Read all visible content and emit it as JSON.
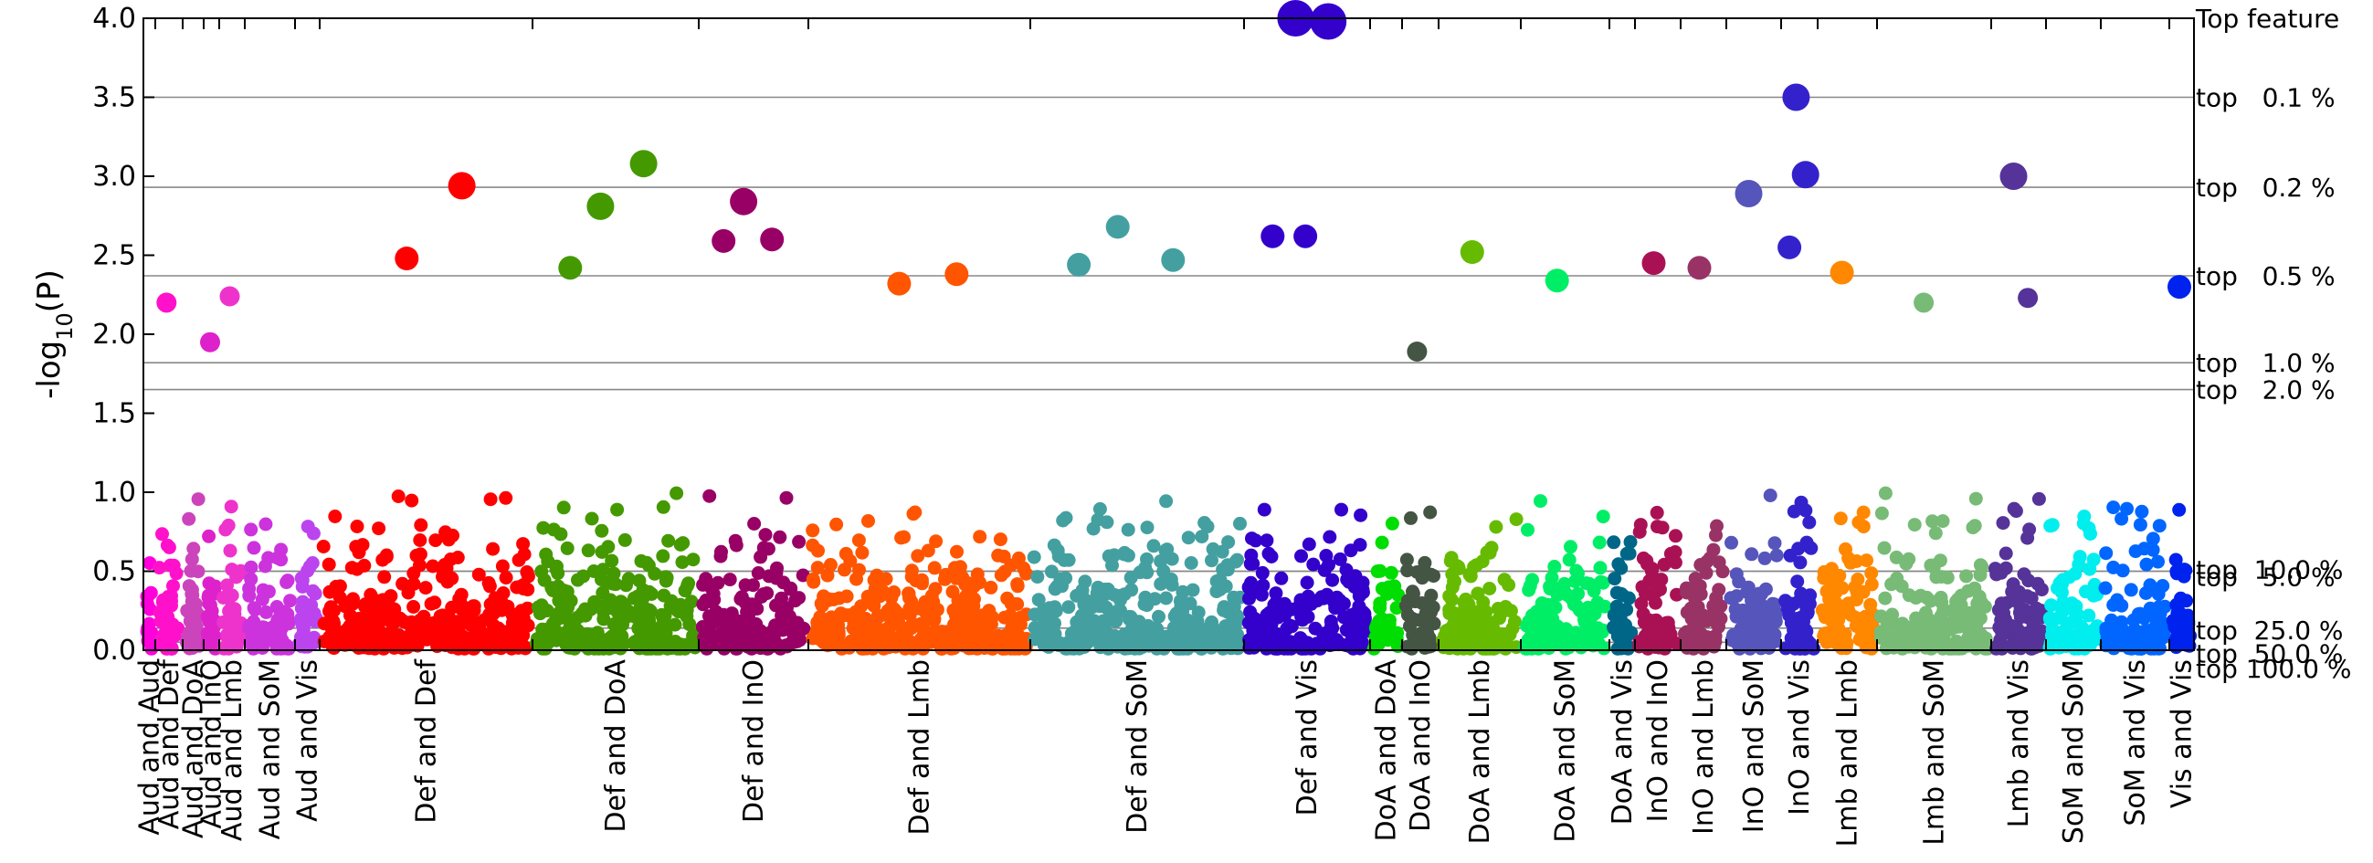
{
  "chart_data": {
    "type": "scatter",
    "title": "",
    "xlabel": "",
    "ylabel": "-log10(P)",
    "ylabel_parts": {
      "main": "-log",
      "sub": "10",
      "tail": "(P)"
    },
    "ylim": [
      0,
      4.0
    ],
    "yticks": [
      "0.0",
      "0.5",
      "1.0",
      "1.5",
      "2.0",
      "2.5",
      "3.0",
      "3.5",
      "4.0"
    ],
    "grid": "horizontal percentile thresholds",
    "legend": "none",
    "categories": [
      {
        "label": "Aud and Aud",
        "color": "#ff00dd"
      },
      {
        "label": "Aud and Def",
        "color": "#ff11cc"
      },
      {
        "label": "Aud and DoA",
        "color": "#cc44bb"
      },
      {
        "label": "Aud and InO",
        "color": "#dd22cc"
      },
      {
        "label": "Aud and Lmb",
        "color": "#ee33cc"
      },
      {
        "label": "Aud and SoM",
        "color": "#cc33dd"
      },
      {
        "label": "Aud and Vis",
        "color": "#bb44ee"
      },
      {
        "label": "Def and Def",
        "color": "#ff0000"
      },
      {
        "label": "Def and DoA",
        "color": "#449900"
      },
      {
        "label": "Def and InO",
        "color": "#990066"
      },
      {
        "label": "Def and Lmb",
        "color": "#ff5500"
      },
      {
        "label": "Def and SoM",
        "color": "#44a0a0"
      },
      {
        "label": "Def and Vis",
        "color": "#3300cc"
      },
      {
        "label": "DoA and DoA",
        "color": "#00dd00"
      },
      {
        "label": "DoA and InO",
        "color": "#445544"
      },
      {
        "label": "DoA and Lmb",
        "color": "#66bb00"
      },
      {
        "label": "DoA and SoM",
        "color": "#00ee66"
      },
      {
        "label": "DoA and Vis",
        "color": "#006688"
      },
      {
        "label": "InO and InO",
        "color": "#aa1155"
      },
      {
        "label": "InO and Lmb",
        "color": "#993366"
      },
      {
        "label": "InO and SoM",
        "color": "#5555bb"
      },
      {
        "label": "InO and Vis",
        "color": "#3322cc"
      },
      {
        "label": "Lmb and Lmb",
        "color": "#ff8800"
      },
      {
        "label": "Lmb and SoM",
        "color": "#77bb77"
      },
      {
        "label": "Lmb and Vis",
        "color": "#553399"
      },
      {
        "label": "SoM and SoM",
        "color": "#00eeee"
      },
      {
        "label": "SoM and Vis",
        "color": "#0066ff"
      },
      {
        "label": "Vis and Vis",
        "color": "#0022ee"
      }
    ],
    "thresholds": [
      {
        "label": "Top feature",
        "y": 4.0
      },
      {
        "label": "top   0.1 %",
        "y": 3.5
      },
      {
        "label": "top   0.2 %",
        "y": 2.93
      },
      {
        "label": "top   0.5 %",
        "y": 2.37
      },
      {
        "label": "top   1.0 %",
        "y": 1.82
      },
      {
        "label": "top   2.0 %",
        "y": 1.65
      },
      {
        "label": "top   5.0 %",
        "y": 0.5
      },
      {
        "label": "top  10.0 %",
        "y": 0.5
      },
      {
        "label": "top  25.0 %",
        "y": 0.14
      },
      {
        "label": "top  50.0 %",
        "y": 0.05
      },
      {
        "label": "top 100.0 %",
        "y": 0.0
      }
    ],
    "notable_points": [
      {
        "group": "Aud and Def",
        "y": 2.2
      },
      {
        "group": "Aud and InO",
        "y": 1.95
      },
      {
        "group": "Aud and Lmb",
        "y": 2.24
      },
      {
        "group": "Def and Def",
        "y": 2.48
      },
      {
        "group": "Def and Def",
        "y": 2.94
      },
      {
        "group": "Def and DoA",
        "y": 2.81
      },
      {
        "group": "Def and DoA",
        "y": 3.08
      },
      {
        "group": "Def and DoA",
        "y": 2.42
      },
      {
        "group": "Def and InO",
        "y": 2.84
      },
      {
        "group": "Def and InO",
        "y": 2.6
      },
      {
        "group": "Def and InO",
        "y": 2.59
      },
      {
        "group": "Def and Lmb",
        "y": 2.32
      },
      {
        "group": "Def and Lmb",
        "y": 2.38
      },
      {
        "group": "Def and SoM",
        "y": 2.68
      },
      {
        "group": "Def and SoM",
        "y": 2.47
      },
      {
        "group": "Def and SoM",
        "y": 2.44
      },
      {
        "group": "Def and Vis",
        "y": 4.0
      },
      {
        "group": "Def and Vis",
        "y": 3.98
      },
      {
        "group": "Def and Vis",
        "y": 2.62
      },
      {
        "group": "Def and Vis",
        "y": 2.62
      },
      {
        "group": "DoA and InO",
        "y": 1.89
      },
      {
        "group": "DoA and Lmb",
        "y": 2.52
      },
      {
        "group": "DoA and SoM",
        "y": 2.34
      },
      {
        "group": "InO and InO",
        "y": 2.45
      },
      {
        "group": "InO and Lmb",
        "y": 2.42
      },
      {
        "group": "InO and SoM",
        "y": 2.89
      },
      {
        "group": "InO and Vis",
        "y": 3.5
      },
      {
        "group": "InO and Vis",
        "y": 3.01
      },
      {
        "group": "InO and Vis",
        "y": 2.55
      },
      {
        "group": "Lmb and Lmb",
        "y": 2.39
      },
      {
        "group": "Lmb and SoM",
        "y": 2.2
      },
      {
        "group": "Lmb and Vis",
        "y": 3.0
      },
      {
        "group": "Lmb and Vis",
        "y": 2.23
      },
      {
        "group": "Vis and Vis",
        "y": 2.3
      }
    ]
  }
}
